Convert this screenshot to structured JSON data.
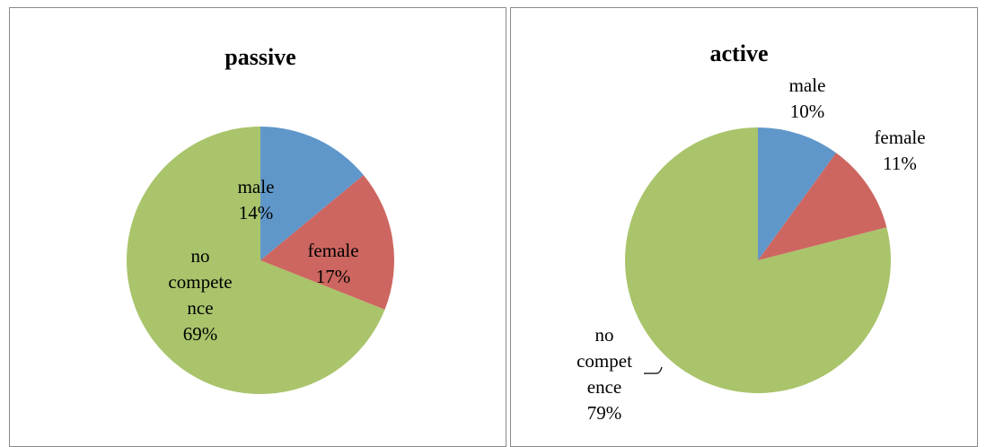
{
  "chart_data": [
    {
      "type": "pie",
      "title": "passive",
      "categories": [
        "male",
        "female",
        "no competence"
      ],
      "values": [
        14,
        17,
        69
      ],
      "value_labels": [
        "14%",
        "17%",
        "69%"
      ],
      "colors": [
        "#6097ca",
        "#cd6660",
        "#a9c46b"
      ]
    },
    {
      "type": "pie",
      "title": "active",
      "categories": [
        "male",
        "female",
        "no competence"
      ],
      "values": [
        10,
        11,
        79
      ],
      "value_labels": [
        "10%",
        "11%",
        "79%"
      ],
      "colors": [
        "#6097ca",
        "#cd6660",
        "#a9c46b"
      ]
    }
  ]
}
